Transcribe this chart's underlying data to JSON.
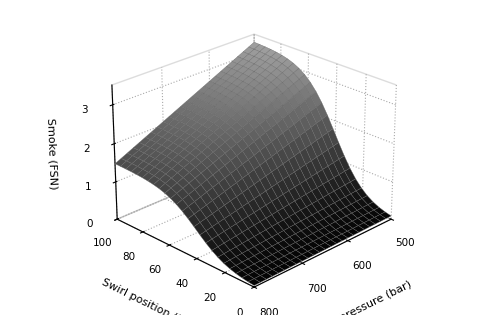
{
  "rail_pressure_range": [
    500,
    800
  ],
  "swirl_range": [
    0,
    100
  ],
  "smoke_zlim": [
    0,
    3.5
  ],
  "rail_pressure_ticks": [
    500,
    600,
    700,
    800
  ],
  "swirl_ticks": [
    0,
    20,
    40,
    60,
    80,
    100
  ],
  "smoke_ticks": [
    0,
    1,
    2,
    3
  ],
  "xlabel": "Rail pressure (bar)",
  "ylabel": "Swirl position (%)",
  "zlabel": "Smoke (FSN)",
  "n_rail": 25,
  "n_swirl": 25,
  "figsize": [
    5.0,
    3.15
  ],
  "dpi": 100,
  "elev": 25,
  "azim": -135
}
